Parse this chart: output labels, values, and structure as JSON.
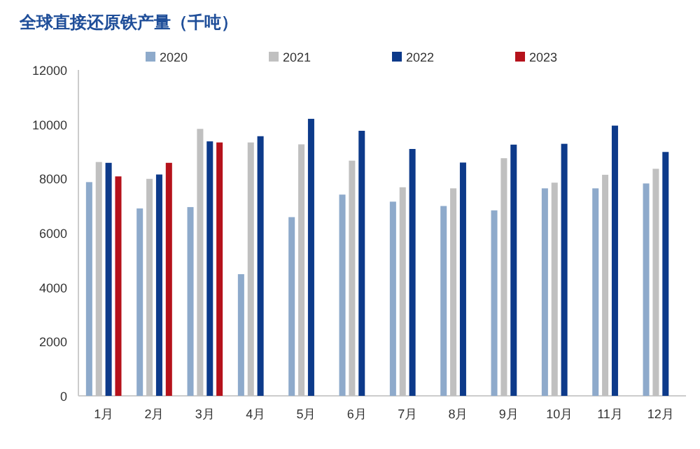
{
  "chart_data": {
    "type": "bar",
    "title": "全球直接还原铁产量（千吨）",
    "categories": [
      "1月",
      "2月",
      "3月",
      "4月",
      "5月",
      "6月",
      "7月",
      "8月",
      "9月",
      "10月",
      "11月",
      "12月"
    ],
    "series": [
      {
        "name": "2020",
        "color": "#8eaacb",
        "values": [
          7870,
          6900,
          6950,
          4480,
          6580,
          7410,
          7150,
          6990,
          6830,
          7640,
          7640,
          7820
        ]
      },
      {
        "name": "2021",
        "color": "#c0c0c0",
        "values": [
          8610,
          7990,
          9830,
          9330,
          9260,
          8660,
          7680,
          7640,
          8750,
          7850,
          8140,
          8360
        ]
      },
      {
        "name": "2022",
        "color": "#0d3a8a",
        "values": [
          8580,
          8150,
          9370,
          9560,
          10200,
          9760,
          9090,
          8590,
          9250,
          9280,
          9950,
          8980
        ]
      },
      {
        "name": "2023",
        "color": "#b5121b",
        "values": [
          8080,
          8580,
          9330,
          null,
          null,
          null,
          null,
          null,
          null,
          null,
          null,
          null
        ]
      }
    ],
    "ylim": [
      0,
      12000
    ],
    "yticks": [
      0,
      2000,
      4000,
      6000,
      8000,
      10000,
      12000
    ],
    "grid": false,
    "legend": "top"
  }
}
